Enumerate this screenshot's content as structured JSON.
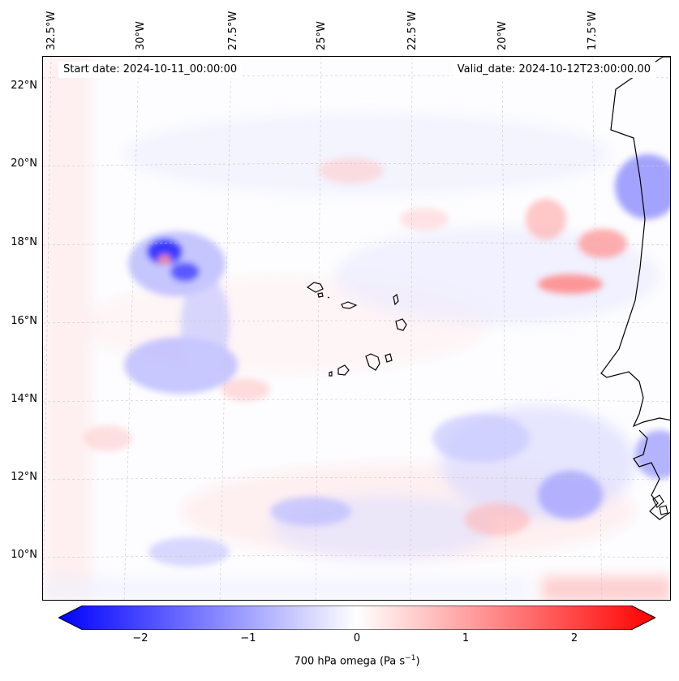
{
  "header": {
    "start_date": "Start date: 2024-10-11_00:00:00",
    "valid_date": "Valid_date: 2024-10-12T23:00:00.00"
  },
  "axes": {
    "lon_labels": [
      "32.5°W",
      "30°W",
      "27.5°W",
      "25°W",
      "22.5°W",
      "20°W",
      "17.5°W"
    ],
    "lat_labels": [
      "22°N",
      "20°N",
      "18°N",
      "16°N",
      "14°N",
      "12°N",
      "10°N"
    ]
  },
  "colorbar": {
    "ticks": [
      "−2",
      "−1",
      "0",
      "1",
      "2"
    ],
    "label": "700 hPa omega (Pa s",
    "label_sup": "−1",
    "label_end": ")",
    "range": [
      -2.5,
      2.5
    ],
    "cmap": "bwr",
    "colors": {
      "min": "#0000ff",
      "mid": "#ffffff",
      "max": "#ff0000"
    }
  },
  "map": {
    "variable": "700 hPa omega",
    "grid": true,
    "features": [
      "coastline",
      "cape-verde-islands",
      "west-africa-coast"
    ]
  }
}
